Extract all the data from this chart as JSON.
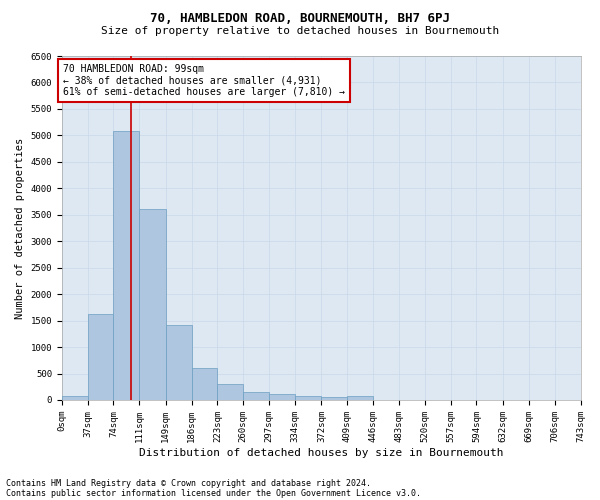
{
  "title_line1": "70, HAMBLEDON ROAD, BOURNEMOUTH, BH7 6PJ",
  "title_line2": "Size of property relative to detached houses in Bournemouth",
  "xlabel": "Distribution of detached houses by size in Bournemouth",
  "ylabel": "Number of detached properties",
  "footer_line1": "Contains HM Land Registry data © Crown copyright and database right 2024.",
  "footer_line2": "Contains public sector information licensed under the Open Government Licence v3.0.",
  "annotation_title": "70 HAMBLEDON ROAD: 99sqm",
  "annotation_line2": "← 38% of detached houses are smaller (4,931)",
  "annotation_line3": "61% of semi-detached houses are larger (7,810) →",
  "property_size_sqm": 99,
  "bin_edges": [
    0,
    37,
    74,
    111,
    149,
    186,
    223,
    260,
    297,
    334,
    372,
    409,
    446,
    483,
    520,
    557,
    594,
    632,
    669,
    706,
    743
  ],
  "bin_labels": [
    "0sqm",
    "37sqm",
    "74sqm",
    "111sqm",
    "149sqm",
    "186sqm",
    "223sqm",
    "260sqm",
    "297sqm",
    "334sqm",
    "372sqm",
    "409sqm",
    "446sqm",
    "483sqm",
    "520sqm",
    "557sqm",
    "594sqm",
    "632sqm",
    "669sqm",
    "706sqm",
    "743sqm"
  ],
  "bar_heights": [
    80,
    1620,
    5080,
    3600,
    1410,
    600,
    300,
    155,
    105,
    70,
    50,
    80,
    0,
    0,
    0,
    0,
    0,
    0,
    0,
    0
  ],
  "bar_color": "#aec6df",
  "bar_edge_color": "#6a9ec0",
  "vline_color": "#cc0000",
  "vline_x": 99,
  "ylim": [
    0,
    6500
  ],
  "yticks": [
    0,
    500,
    1000,
    1500,
    2000,
    2500,
    3000,
    3500,
    4000,
    4500,
    5000,
    5500,
    6000,
    6500
  ],
  "grid_color": "#c8d8e8",
  "background_color": "#dde8f3",
  "annotation_box_color": "#ffffff",
  "annotation_box_edge": "#cc0000",
  "title1_fontsize": 9,
  "title2_fontsize": 8,
  "xlabel_fontsize": 8,
  "ylabel_fontsize": 7.5,
  "tick_fontsize": 6.5,
  "annotation_fontsize": 7,
  "footer_fontsize": 6
}
